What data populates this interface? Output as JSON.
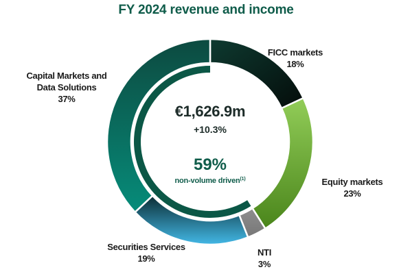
{
  "title": "FY 2024 revenue and income",
  "center": {
    "total": "€1,626.9m",
    "growth": "+10.3%",
    "non_volume_pct": "59%",
    "non_volume_label": "non-volume driven",
    "footnote_marker": "(1)"
  },
  "labels": {
    "ficc": {
      "name": "FICC markets",
      "pct": "18%"
    },
    "equity": {
      "name": "Equity markets",
      "pct": "23%"
    },
    "nti": {
      "name": "NTI",
      "pct": "3%"
    },
    "securities": {
      "name": "Securities Services",
      "pct": "19%"
    },
    "cmds": {
      "name_line1": "Capital Markets and",
      "name_line2": "Data Solutions",
      "pct": "37%"
    }
  },
  "colors": {
    "title": "#0f5c4a",
    "ficc": [
      "#0e3a30",
      "#050f0d"
    ],
    "equity": [
      "#8fca55",
      "#4e8a1e"
    ],
    "nti": [
      "#8a8a8a",
      "#7a7a7a"
    ],
    "securities": [
      "#0c3a44",
      "#3eb4e2"
    ],
    "cmds": [
      "#0d4a40",
      "#068a78"
    ],
    "inner_ring": "#0b5746"
  },
  "chart_data": {
    "type": "pie",
    "variant": "donut",
    "title": "FY 2024 revenue and income",
    "categories": [
      "FICC markets",
      "Equity markets",
      "NTI",
      "Securities Services",
      "Capital Markets and Data Solutions"
    ],
    "values": [
      18,
      23,
      3,
      19,
      37
    ],
    "unit": "%",
    "total": "€1,626.9m",
    "growth": "+10.3%",
    "annotations": [
      {
        "text": "59% non-volume driven(1)",
        "type": "inner-ring-arc",
        "value": 59
      }
    ],
    "start_angle": "12 o'clock",
    "direction": "clockwise",
    "legend": "none (direct labels)"
  }
}
